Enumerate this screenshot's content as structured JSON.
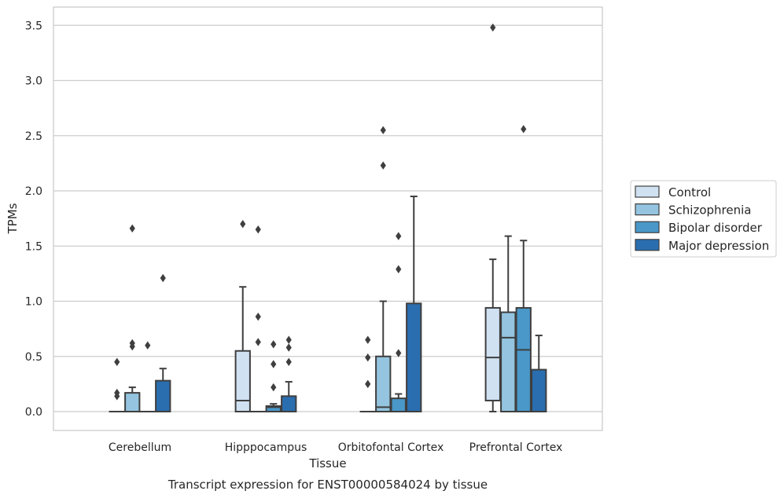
{
  "chart_data": {
    "type": "box",
    "caption": "Transcript expression for ENST00000584024 by tissue",
    "xlabel": "Tissue",
    "ylabel": "TPMs",
    "ylim": [
      -0.17,
      3.66
    ],
    "yticks": [
      "0.0",
      "0.5",
      "1.0",
      "1.5",
      "2.0",
      "2.5",
      "3.0",
      "3.5"
    ],
    "ytick_values": [
      0,
      0.5,
      1.0,
      1.5,
      2.0,
      2.5,
      3.0,
      3.5
    ],
    "grid": "horizontal",
    "legend_position": "right",
    "categories": [
      "Cerebellum",
      "Hipppocampus",
      "Orbitofontal Cortex",
      "Prefrontal Cortex"
    ],
    "series": [
      {
        "name": "Control",
        "color": "#d0e1f2",
        "boxes": [
          {
            "q1": 0,
            "median": 0,
            "q3": 0,
            "whislo": 0,
            "whishi": 0,
            "fliers": [
              0.45,
              0.17,
              0.14
            ]
          },
          {
            "q1": 0,
            "median": 0.1,
            "q3": 0.55,
            "whislo": 0,
            "whishi": 1.13,
            "fliers": [
              1.7
            ]
          },
          {
            "q1": 0,
            "median": 0,
            "q3": 0,
            "whislo": 0,
            "whishi": 0,
            "fliers": [
              0.65,
              0.49,
              0.25
            ]
          },
          {
            "q1": 0.1,
            "median": 0.49,
            "q3": 0.94,
            "whislo": 0,
            "whishi": 1.38,
            "fliers": [
              3.48
            ]
          }
        ]
      },
      {
        "name": "Schizophrenia",
        "color": "#94c4df",
        "boxes": [
          {
            "q1": 0,
            "median": 0,
            "q3": 0.17,
            "whislo": 0,
            "whishi": 0.22,
            "fliers": [
              1.66,
              0.62,
              0.59
            ]
          },
          {
            "q1": 0,
            "median": 0,
            "q3": 0,
            "whislo": 0,
            "whishi": 0,
            "fliers": [
              1.65,
              0.86,
              0.63
            ]
          },
          {
            "q1": 0,
            "median": 0.04,
            "q3": 0.5,
            "whislo": 0,
            "whishi": 1.0,
            "fliers": [
              2.55,
              2.23
            ]
          },
          {
            "q1": 0,
            "median": 0.67,
            "q3": 0.9,
            "whislo": 0,
            "whishi": 1.59,
            "fliers": []
          }
        ]
      },
      {
        "name": "Bipolar disorder",
        "color": "#4a98c9",
        "boxes": [
          {
            "q1": 0,
            "median": 0,
            "q3": 0,
            "whislo": 0,
            "whishi": 0,
            "fliers": [
              0.6
            ]
          },
          {
            "q1": 0,
            "median": 0.04,
            "q3": 0.05,
            "whislo": 0,
            "whishi": 0.07,
            "fliers": [
              0.61,
              0.43,
              0.22
            ]
          },
          {
            "q1": 0,
            "median": 0,
            "q3": 0.12,
            "whislo": 0,
            "whishi": 0.16,
            "fliers": [
              1.59,
              1.29,
              0.53
            ]
          },
          {
            "q1": 0,
            "median": 0.56,
            "q3": 0.94,
            "whislo": 0,
            "whishi": 1.55,
            "fliers": [
              2.56
            ]
          }
        ]
      },
      {
        "name": "Major depression",
        "color": "#2a6eb0",
        "boxes": [
          {
            "q1": 0,
            "median": 0,
            "q3": 0.28,
            "whislo": 0,
            "whishi": 0.39,
            "fliers": [
              1.21
            ]
          },
          {
            "q1": 0,
            "median": 0,
            "q3": 0.14,
            "whislo": 0,
            "whishi": 0.27,
            "fliers": [
              0.65,
              0.58,
              0.45
            ]
          },
          {
            "q1": 0,
            "median": 0,
            "q3": 0.98,
            "whislo": 0,
            "whishi": 1.95,
            "fliers": []
          },
          {
            "q1": 0,
            "median": 0,
            "q3": 0.38,
            "whislo": 0,
            "whishi": 0.69,
            "fliers": []
          }
        ]
      }
    ]
  }
}
